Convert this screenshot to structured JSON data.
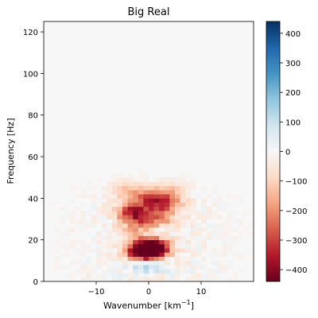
{
  "chart_data": {
    "type": "heatmap",
    "title": "Big Real",
    "xlabel": "Wavenumber [km",
    "xlabel_sup": "−1",
    "xlabel_close": "]",
    "ylabel": "Frequency [Hz]",
    "xlim": [
      -20,
      20
    ],
    "ylim": [
      0,
      125
    ],
    "x_ticks": [
      -10,
      0,
      10
    ],
    "x_tick_labels": [
      "−10",
      "0",
      "10"
    ],
    "y_ticks": [
      0,
      20,
      40,
      60,
      80,
      100,
      120
    ],
    "y_tick_labels": [
      "0",
      "20",
      "40",
      "60",
      "80",
      "100",
      "120"
    ],
    "colormap": "RdBu",
    "colorbar": {
      "vmin": -440,
      "vmax": 440,
      "ticks": [
        400,
        300,
        200,
        100,
        0,
        -100,
        -200,
        -300,
        -400
      ],
      "tick_labels": [
        "400",
        "300",
        "200",
        "100",
        "0",
        "−100",
        "−200",
        "−300",
        "−400"
      ]
    },
    "grid": false,
    "background_value": 0,
    "features": [
      {
        "x": 0,
        "y": 15,
        "value": -420
      },
      {
        "x": -1,
        "y": 14,
        "value": -350
      },
      {
        "x": 1,
        "y": 17,
        "value": -300
      },
      {
        "x": 0,
        "y": 10,
        "value": 120
      },
      {
        "x": -1,
        "y": 7,
        "value": 80
      },
      {
        "x": -3,
        "y": 34,
        "value": -260
      },
      {
        "x": 3,
        "y": 37,
        "value": -250
      },
      {
        "x": 0,
        "y": 40,
        "value": -200
      },
      {
        "x": -2,
        "y": 30,
        "value": -180
      },
      {
        "x": 2,
        "y": 29,
        "value": -170
      },
      {
        "x": -2,
        "y": 23,
        "value": -150
      },
      {
        "x": 1,
        "y": 25,
        "value": 90
      },
      {
        "x": -1,
        "y": 20,
        "value": 70
      },
      {
        "x": 4,
        "y": 43,
        "value": -120
      },
      {
        "x": -4,
        "y": 44,
        "value": -110
      }
    ]
  }
}
